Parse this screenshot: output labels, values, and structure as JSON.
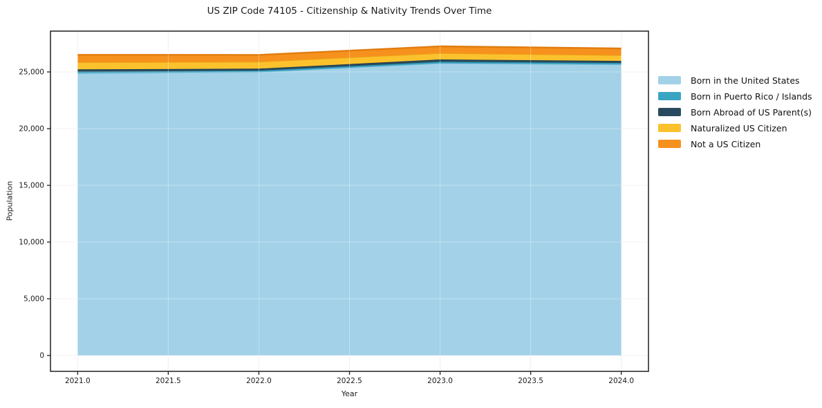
{
  "chart_data": {
    "type": "area",
    "stacked": true,
    "title": "US ZIP Code 74105 - Citizenship & Nativity Trends Over Time",
    "xlabel": "Year",
    "ylabel": "Population",
    "x": [
      2021,
      2022,
      2023,
      2024
    ],
    "series": [
      {
        "name": "Born in the United States",
        "values": [
          24880,
          24980,
          25750,
          25650
        ],
        "color": "#a3d1e8",
        "edge": "#8fc3de"
      },
      {
        "name": "Born in Puerto Rico / Islands",
        "values": [
          140,
          140,
          150,
          140
        ],
        "color": "#3aa5c3",
        "edge": "#2e8fae"
      },
      {
        "name": "Born Abroad of US Parent(s)",
        "values": [
          210,
          170,
          200,
          180
        ],
        "color": "#294a5e",
        "edge": "#1c3a4b"
      },
      {
        "name": "Naturalized US Citizen",
        "values": [
          610,
          600,
          550,
          490
        ],
        "color": "#fcc22e",
        "edge": "#eaa816"
      },
      {
        "name": "Not a US Citizen",
        "values": [
          670,
          610,
          610,
          610
        ],
        "color": "#f6911e",
        "edge": "#e07c0e"
      }
    ],
    "xlim": [
      2020.85,
      2024.15
    ],
    "ylim": [
      -1400,
      28600
    ],
    "xticks": {
      "values": [
        2021.0,
        2021.5,
        2022.0,
        2022.5,
        2023.0,
        2023.5,
        2024.0
      ],
      "labels": [
        "2021.0",
        "2021.5",
        "2022.0",
        "2022.5",
        "2023.0",
        "2023.5",
        "2024.0"
      ]
    },
    "yticks": {
      "values": [
        0,
        5000,
        10000,
        15000,
        20000,
        25000
      ],
      "labels": [
        "0",
        "5,000",
        "10,000",
        "15,000",
        "20,000",
        "25,000"
      ]
    },
    "grid": true,
    "legend_position": "right",
    "spine_color": "#1f1f1f",
    "grid_color_under": "#eaeaea",
    "grid_color_over": "rgba(255,255,255,0.35)"
  }
}
